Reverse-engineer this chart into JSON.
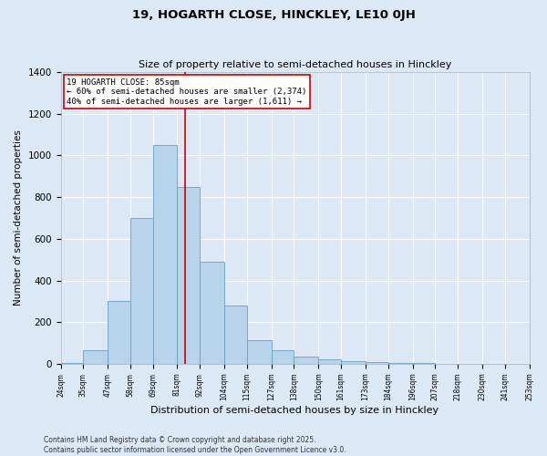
{
  "title1": "19, HOGARTH CLOSE, HINCKLEY, LE10 0JH",
  "title2": "Size of property relative to semi-detached houses in Hinckley",
  "xlabel": "Distribution of semi-detached houses by size in Hinckley",
  "ylabel": "Number of semi-detached properties",
  "bar_left_edges": [
    24,
    35,
    47,
    58,
    69,
    81,
    92,
    104,
    115,
    127,
    138,
    150,
    161,
    173,
    184,
    196,
    207,
    218,
    230,
    241
  ],
  "bar_heights": [
    5,
    65,
    300,
    700,
    1050,
    850,
    490,
    280,
    115,
    65,
    35,
    20,
    15,
    10,
    5,
    3,
    1,
    0,
    0,
    0
  ],
  "bar_widths": [
    11,
    12,
    11,
    11,
    12,
    11,
    12,
    11,
    12,
    11,
    12,
    11,
    12,
    11,
    12,
    11,
    12,
    11,
    12,
    12
  ],
  "tick_labels": [
    "24sqm",
    "35sqm",
    "47sqm",
    "58sqm",
    "69sqm",
    "81sqm",
    "92sqm",
    "104sqm",
    "115sqm",
    "127sqm",
    "138sqm",
    "150sqm",
    "161sqm",
    "173sqm",
    "184sqm",
    "196sqm",
    "207sqm",
    "218sqm",
    "230sqm",
    "241sqm",
    "253sqm"
  ],
  "tick_positions": [
    24,
    35,
    47,
    58,
    69,
    81,
    92,
    104,
    115,
    127,
    138,
    150,
    161,
    173,
    184,
    196,
    207,
    218,
    230,
    241,
    253
  ],
  "bar_color": "#b8d4ea",
  "bar_edge_color": "#6a9fc0",
  "vline_x": 85,
  "vline_color": "#cc0000",
  "annotation_title": "19 HOGARTH CLOSE: 85sqm",
  "annotation_line1": "← 60% of semi-detached houses are smaller (2,374)",
  "annotation_line2": "40% of semi-detached houses are larger (1,611) →",
  "annotation_box_color": "#ffffff",
  "annotation_box_edge": "#cc0000",
  "ylim": [
    0,
    1400
  ],
  "yticks": [
    0,
    200,
    400,
    600,
    800,
    1000,
    1200,
    1400
  ],
  "bg_color": "#dce8f5",
  "footer1": "Contains HM Land Registry data © Crown copyright and database right 2025.",
  "footer2": "Contains public sector information licensed under the Open Government Licence v3.0."
}
